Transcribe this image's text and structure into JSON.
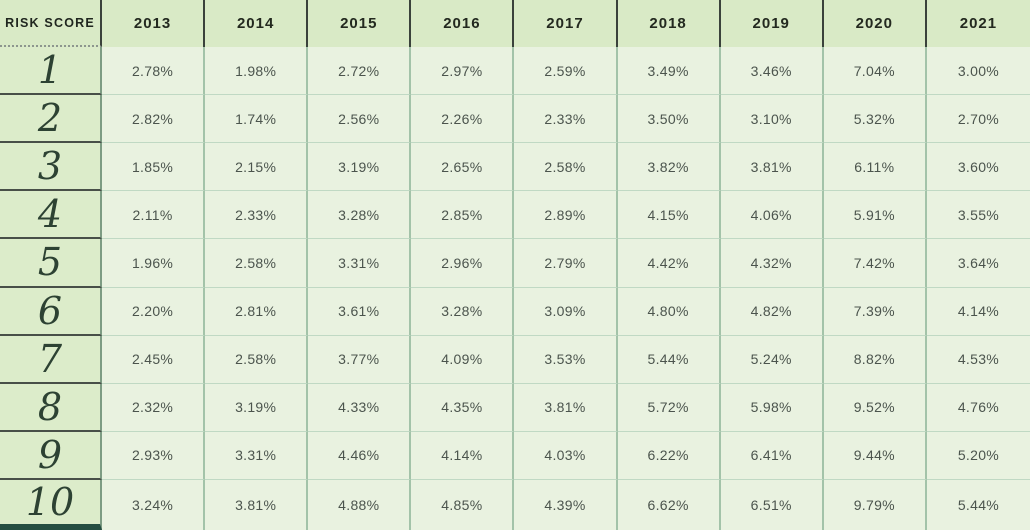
{
  "colors": {
    "header_bg": "#d9eac6",
    "score_column_bg": "#dcecca",
    "cell_bg": "#e9f2e0",
    "dark_rule": "#3a423b",
    "sage_rule": "#a3c3a9",
    "score_bottom_bar": "#254e41",
    "score_text": "#2d4233"
  },
  "chart_data": {
    "type": "table",
    "corner_label": "RISK SCORE",
    "columns": [
      "2013",
      "2014",
      "2015",
      "2016",
      "2017",
      "2018",
      "2019",
      "2020",
      "2021"
    ],
    "row_labels": [
      "1",
      "2",
      "3",
      "4",
      "5",
      "6",
      "7",
      "8",
      "9",
      "10"
    ],
    "rows": [
      [
        "2.78%",
        "1.98%",
        "2.72%",
        "2.97%",
        "2.59%",
        "3.49%",
        "3.46%",
        "7.04%",
        "3.00%"
      ],
      [
        "2.82%",
        "1.74%",
        "2.56%",
        "2.26%",
        "2.33%",
        "3.50%",
        "3.10%",
        "5.32%",
        "2.70%"
      ],
      [
        "1.85%",
        "2.15%",
        "3.19%",
        "2.65%",
        "2.58%",
        "3.82%",
        "3.81%",
        "6.11%",
        "3.60%"
      ],
      [
        "2.11%",
        "2.33%",
        "3.28%",
        "2.85%",
        "2.89%",
        "4.15%",
        "4.06%",
        "5.91%",
        "3.55%"
      ],
      [
        "1.96%",
        "2.58%",
        "3.31%",
        "2.96%",
        "2.79%",
        "4.42%",
        "4.32%",
        "7.42%",
        "3.64%"
      ],
      [
        "2.20%",
        "2.81%",
        "3.61%",
        "3.28%",
        "3.09%",
        "4.80%",
        "4.82%",
        "7.39%",
        "4.14%"
      ],
      [
        "2.45%",
        "2.58%",
        "3.77%",
        "4.09%",
        "3.53%",
        "5.44%",
        "5.24%",
        "8.82%",
        "4.53%"
      ],
      [
        "2.32%",
        "3.19%",
        "4.33%",
        "4.35%",
        "3.81%",
        "5.72%",
        "5.98%",
        "9.52%",
        "4.76%"
      ],
      [
        "2.93%",
        "3.31%",
        "4.46%",
        "4.14%",
        "4.03%",
        "6.22%",
        "6.41%",
        "9.44%",
        "5.20%"
      ],
      [
        "3.24%",
        "3.81%",
        "4.88%",
        "4.85%",
        "4.39%",
        "6.62%",
        "6.51%",
        "9.79%",
        "5.44%"
      ]
    ]
  }
}
